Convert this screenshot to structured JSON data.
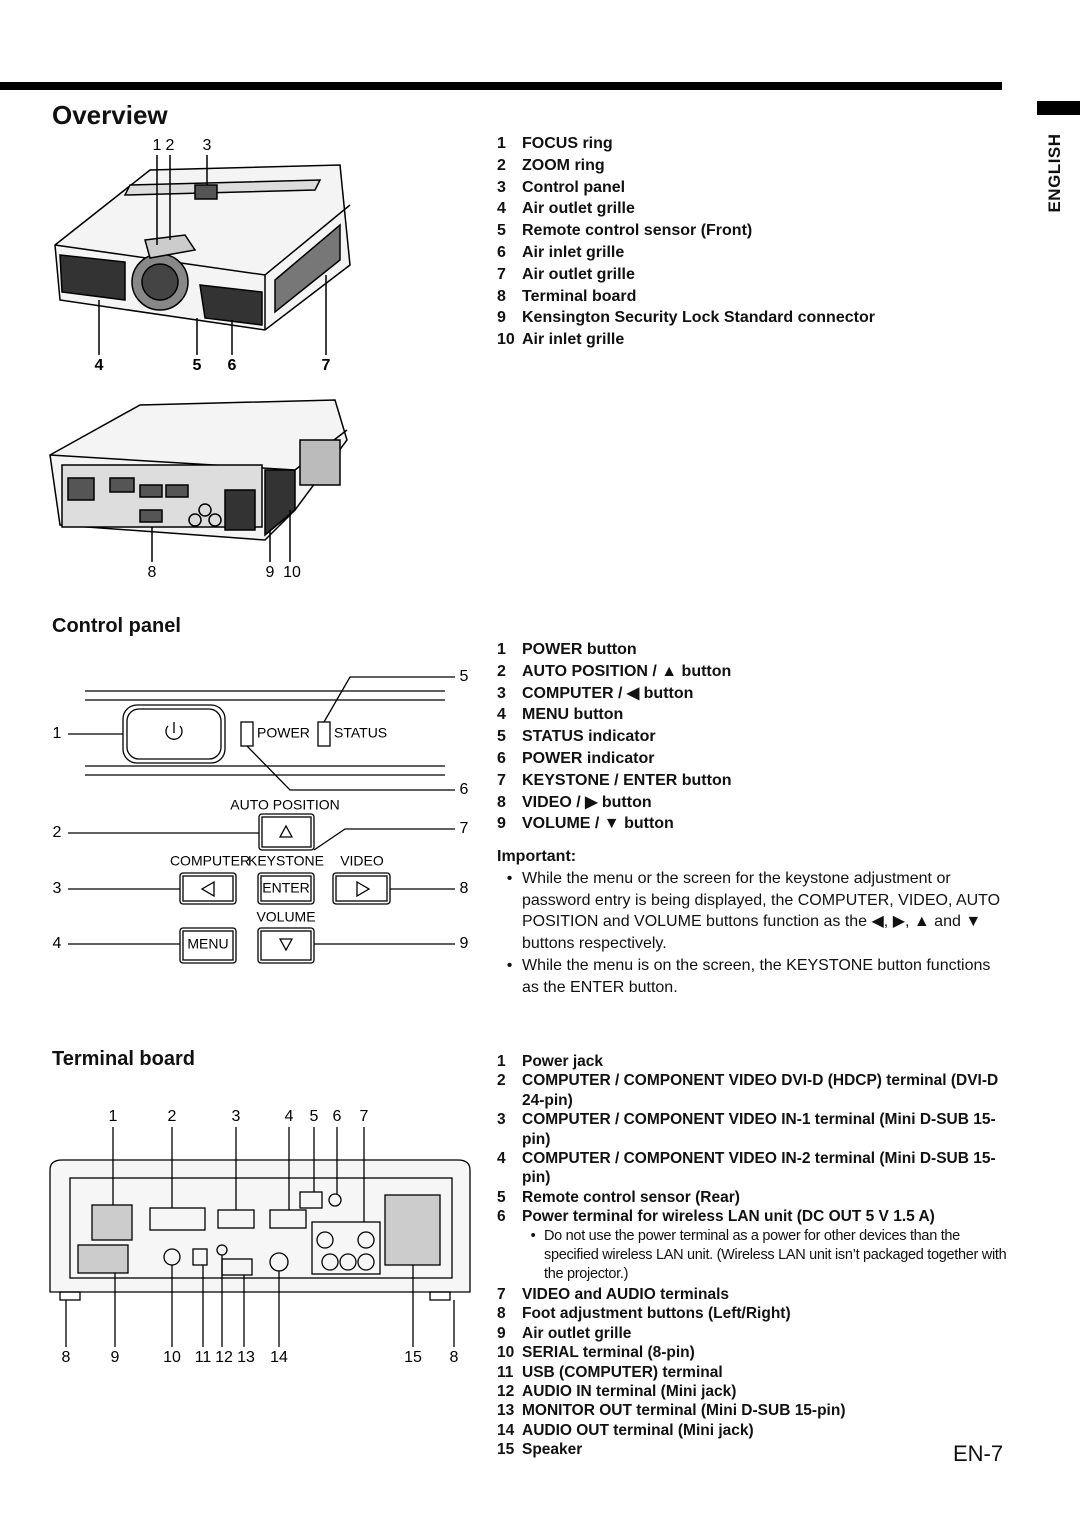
{
  "header": {
    "title": "Overview",
    "language_tab": "ENGLISH",
    "page_number": "EN-7"
  },
  "overview": {
    "figure_labels": {
      "top": [
        "1",
        "2",
        "3"
      ],
      "middle": [
        "4",
        "5",
        "6",
        "7"
      ],
      "bottom": [
        "8",
        "9",
        "10"
      ]
    },
    "items": [
      {
        "num": "1",
        "text": "FOCUS ring"
      },
      {
        "num": "2",
        "text": "ZOOM ring"
      },
      {
        "num": "3",
        "text": "Control panel"
      },
      {
        "num": "4",
        "text": "Air outlet grille"
      },
      {
        "num": "5",
        "text": "Remote control sensor (Front)"
      },
      {
        "num": "6",
        "text": "Air inlet grille"
      },
      {
        "num": "7",
        "text": "Air outlet grille"
      },
      {
        "num": "8",
        "text": "Terminal board"
      },
      {
        "num": "9",
        "text": "Kensington Security Lock Standard connector"
      },
      {
        "num": "10",
        "text": "Air inlet grille"
      }
    ]
  },
  "control_panel": {
    "title": "Control panel",
    "panel_labels": {
      "power": "POWER",
      "status": "STATUS",
      "auto_position": "AUTO POSITION",
      "computer": "COMPUTER",
      "keystone": "KEYSTONE",
      "video": "VIDEO",
      "enter": "ENTER",
      "volume": "VOLUME",
      "menu": "MENU"
    },
    "callouts_left": [
      "1",
      "2",
      "3",
      "4"
    ],
    "callouts_right": [
      "5",
      "6",
      "7",
      "8",
      "9"
    ],
    "items": [
      {
        "num": "1",
        "text": "POWER button"
      },
      {
        "num": "2",
        "text": "AUTO POSITION / ▲ button"
      },
      {
        "num": "3",
        "text": "COMPUTER / ◀ button"
      },
      {
        "num": "4",
        "text": "MENU button"
      },
      {
        "num": "5",
        "text": "STATUS indicator"
      },
      {
        "num": "6",
        "text": "POWER indicator"
      },
      {
        "num": "7",
        "text": "KEYSTONE / ENTER button"
      },
      {
        "num": "8",
        "text": "VIDEO / ▶ button"
      },
      {
        "num": "9",
        "text": "VOLUME / ▼ button"
      }
    ],
    "important": {
      "title": "Important:",
      "bullets": [
        "While the menu or the screen for the keystone adjustment or password entry is being displayed, the COMPUTER, VIDEO, AUTO POSITION and VOLUME buttons function as the ◀, ▶, ▲ and ▼ buttons respectively.",
        "While the menu is on the screen, the KEYSTONE button functions as the ENTER button."
      ]
    }
  },
  "terminal_board": {
    "title": "Terminal board",
    "callouts_top": [
      "1",
      "2",
      "3",
      "4",
      "5",
      "6",
      "7"
    ],
    "callouts_bottom": [
      "8",
      "9",
      "10",
      "11",
      "12",
      "13",
      "14",
      "15",
      "8"
    ],
    "items": [
      {
        "num": "1",
        "text": "Power jack"
      },
      {
        "num": "2",
        "text": "COMPUTER / COMPONENT VIDEO DVI-D (HDCP) terminal (DVI-D 24-pin)"
      },
      {
        "num": "3",
        "text": "COMPUTER / COMPONENT VIDEO IN-1 terminal (Mini D-SUB 15-pin)"
      },
      {
        "num": "4",
        "text": "COMPUTER / COMPONENT VIDEO IN-2 terminal (Mini D-SUB 15-pin)"
      },
      {
        "num": "5",
        "text": "Remote control sensor (Rear)"
      },
      {
        "num": "6",
        "text": "Power terminal for wireless LAN unit (DC OUT 5 V 1.5 A)",
        "note": "Do not use the power terminal as a power for other devices than the specified wireless LAN unit. (Wireless LAN unit isn’t packaged together with the projector.)"
      },
      {
        "num": "7",
        "text": "VIDEO and AUDIO terminals"
      },
      {
        "num": "8",
        "text": "Foot adjustment buttons (Left/Right)"
      },
      {
        "num": "9",
        "text": "Air outlet grille"
      },
      {
        "num": "10",
        "text": "SERIAL terminal (8-pin)"
      },
      {
        "num": "11",
        "text": "USB (COMPUTER) terminal"
      },
      {
        "num": "12",
        "text": "AUDIO IN terminal (Mini jack)"
      },
      {
        "num": "13",
        "text": "MONITOR OUT terminal (Mini D-SUB 15-pin)"
      },
      {
        "num": "14",
        "text": "AUDIO OUT terminal (Mini jack)"
      },
      {
        "num": "15",
        "text": "Speaker"
      }
    ]
  }
}
